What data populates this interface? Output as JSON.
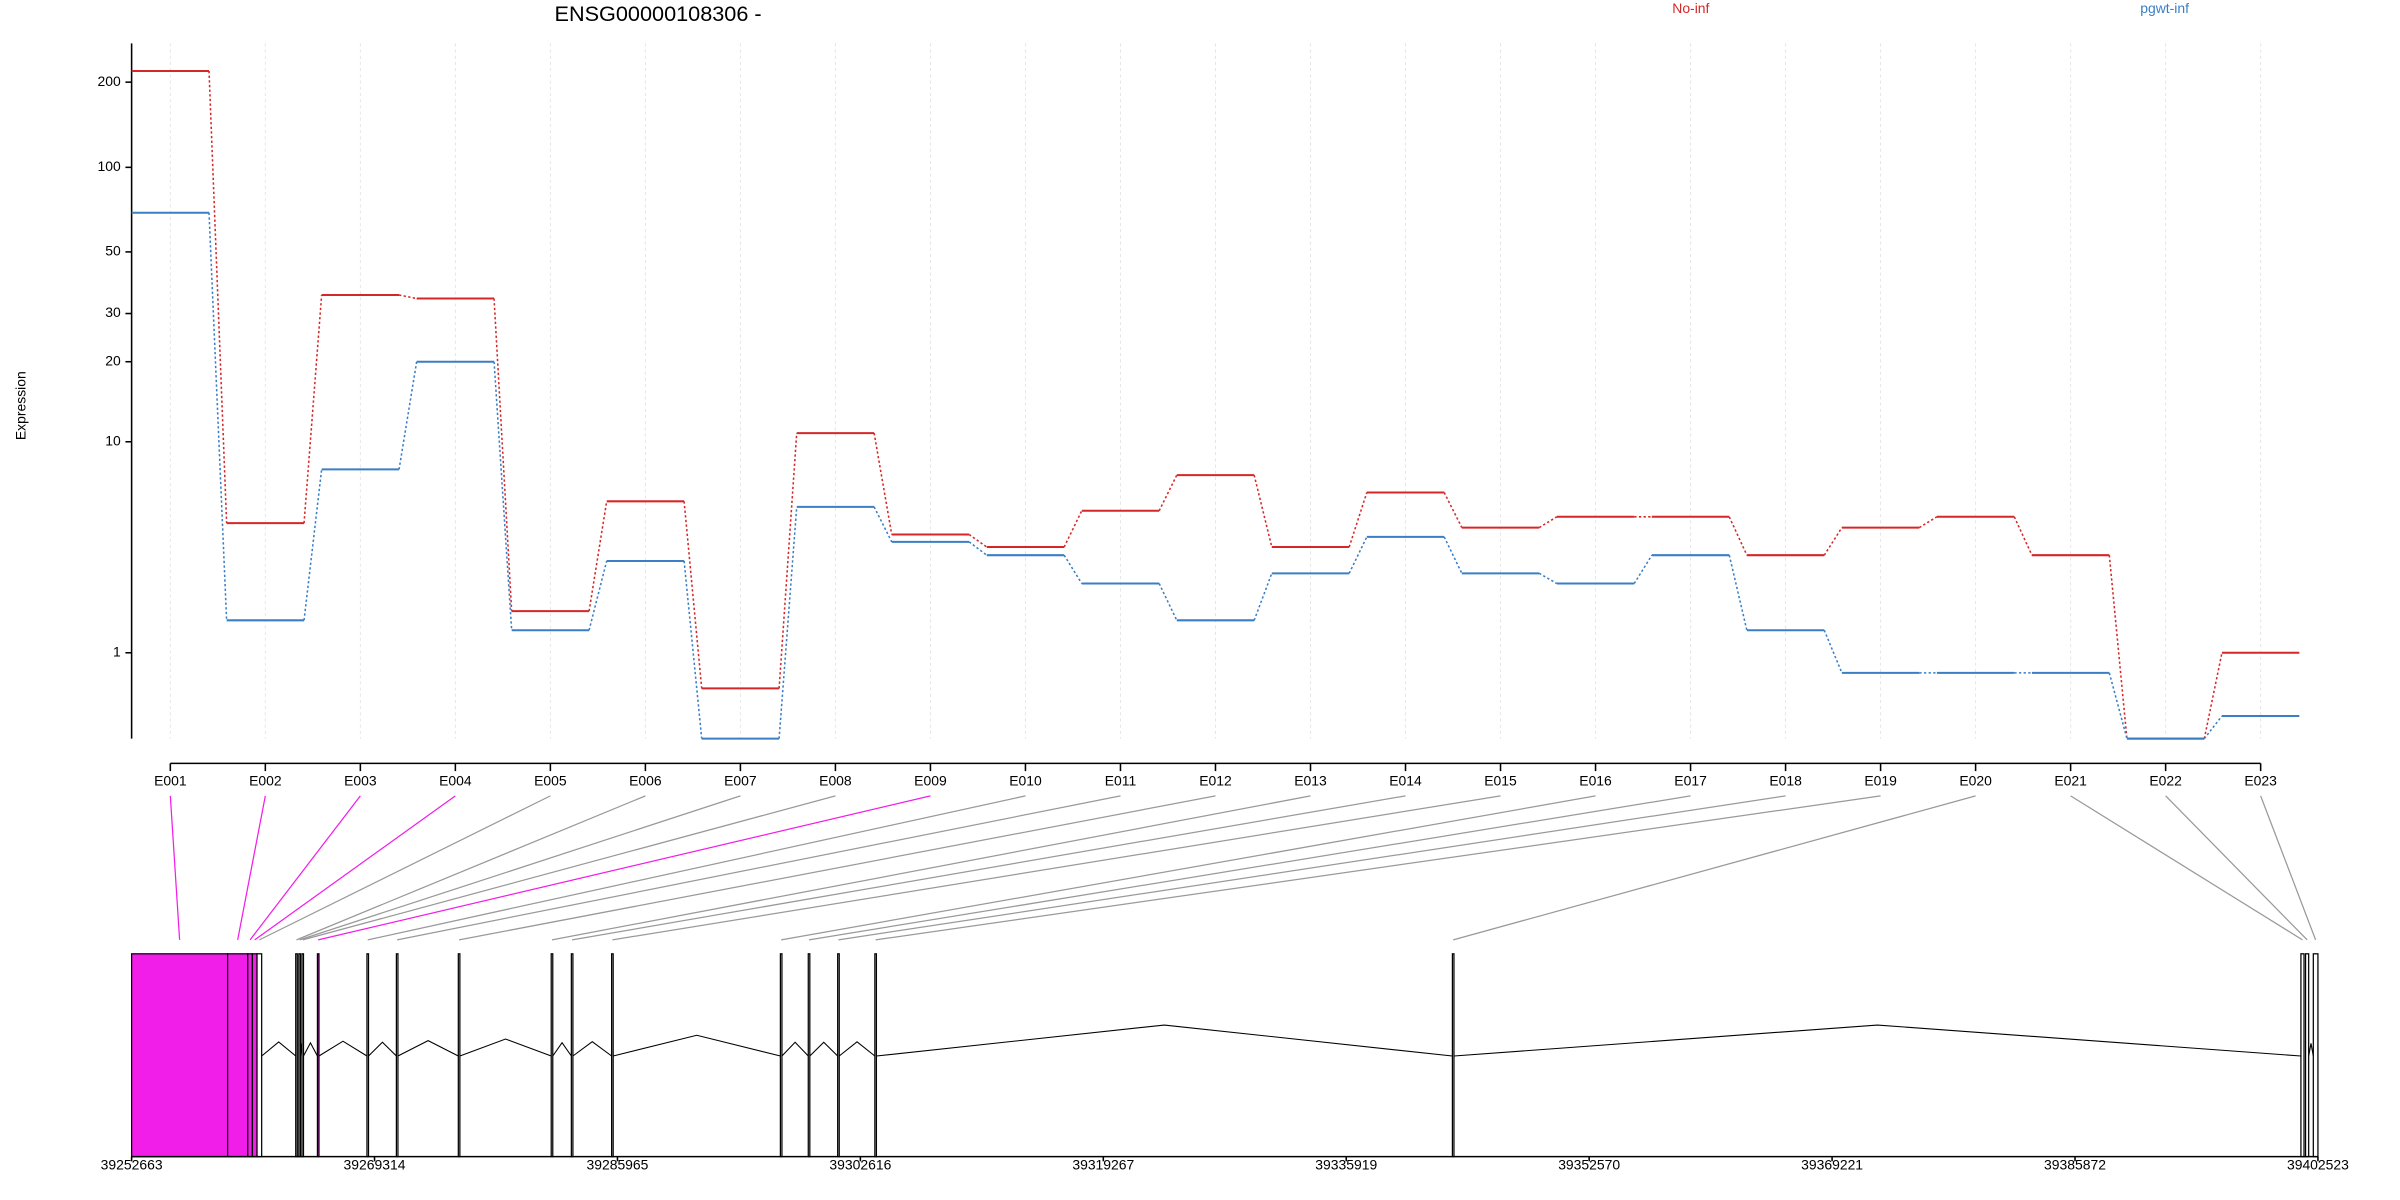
{
  "chart_data": [
    {
      "type": "step-line",
      "title": "ENSG00000108306 -",
      "ylabel": "Expression",
      "yscale": "log1p",
      "categories": [
        "E001",
        "E002",
        "E003",
        "E004",
        "E005",
        "E006",
        "E007",
        "E008",
        "E009",
        "E010",
        "E011",
        "E012",
        "E013",
        "E014",
        "E015",
        "E016",
        "E017",
        "E018",
        "E019",
        "E020",
        "E021",
        "E022",
        "E023"
      ],
      "series": [
        {
          "name": "No-inf",
          "color": "#d62728",
          "values": [
            219,
            4.7,
            35,
            34,
            1.8,
            5.8,
            0.5,
            10.8,
            4.2,
            3.7,
            5.3,
            7.4,
            3.7,
            6.3,
            4.5,
            5.0,
            5.0,
            3.4,
            4.5,
            5.0,
            3.4,
            0,
            1.0
          ]
        },
        {
          "name": "pgwt-inf",
          "color": "#3a7fc4",
          "values": [
            69,
            1.6,
            7.8,
            20,
            1.4,
            3.2,
            0,
            5.5,
            3.9,
            3.4,
            2.5,
            1.6,
            2.8,
            4.1,
            2.8,
            2.5,
            3.4,
            1.4,
            0.7,
            0.7,
            0.7,
            0,
            0.2
          ]
        }
      ],
      "ylim": [
        0,
        274
      ],
      "yticks": [
        1,
        10,
        20,
        30,
        50,
        100,
        200
      ],
      "grid": true
    },
    {
      "type": "gene-model",
      "xlim": [
        39252663,
        39402523
      ],
      "xticks": [
        39252663,
        39269314,
        39285965,
        39302616,
        39319267,
        39335919,
        39352570,
        39369221,
        39385872,
        39402523
      ],
      "exons": [
        [
          39252663,
          39259243
        ],
        [
          39259243,
          39260623
        ],
        [
          39260623,
          39260942
        ],
        [
          39260942,
          39261260
        ],
        [
          39261260,
          39261578
        ],
        [
          39263913,
          39264019
        ],
        [
          39264125,
          39264231
        ],
        [
          39264338,
          39264444
        ],
        [
          39265399,
          39265505
        ],
        [
          39268795,
          39268901
        ],
        [
          39270812,
          39270918
        ],
        [
          39275057,
          39275163
        ],
        [
          39281425,
          39281531
        ],
        [
          39282805,
          39282911
        ],
        [
          39285565,
          39285671
        ],
        [
          39297133,
          39297239
        ],
        [
          39299044,
          39299150
        ],
        [
          39301060,
          39301166
        ],
        [
          39303608,
          39303714
        ],
        [
          39343196,
          39343302
        ],
        [
          39401357,
          39401569
        ],
        [
          39401675,
          39401888
        ],
        [
          39402206,
          39402523
        ]
      ],
      "exon_colors": [
        "#f01ee8",
        "#f01ee8",
        "#f01ee8",
        "#f01ee8",
        "#ffffff",
        "#ffffff",
        "#ffffff",
        "#ffffff",
        "#f01ee8",
        "#ffffff",
        "#ffffff",
        "#ffffff",
        "#ffffff",
        "#ffffff",
        "#ffffff",
        "#ffffff",
        "#ffffff",
        "#ffffff",
        "#ffffff",
        "#ffffff",
        "#ffffff",
        "#ffffff",
        "#ffffff"
      ]
    }
  ]
}
